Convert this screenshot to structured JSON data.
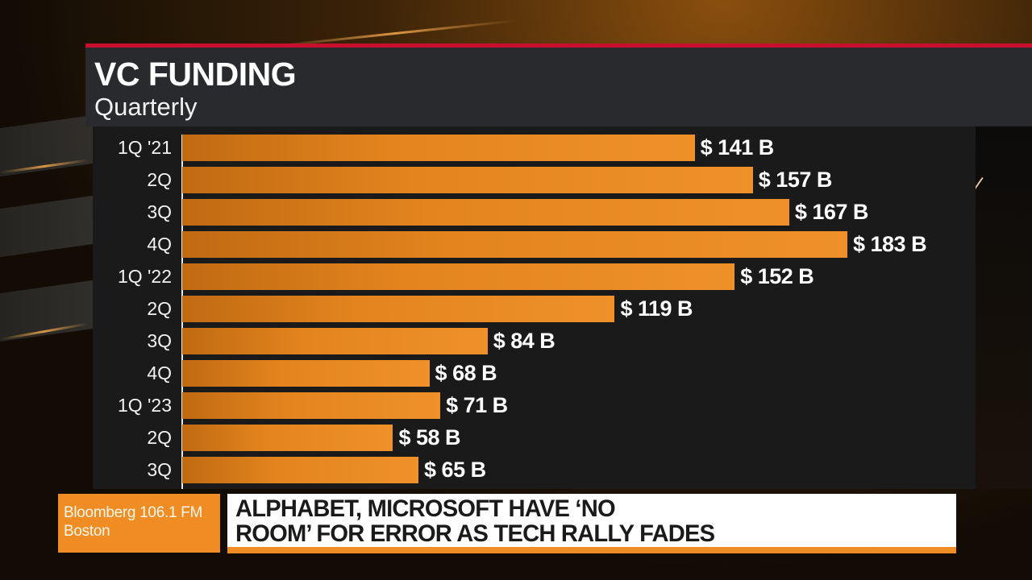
{
  "header": {
    "title": "VC FUNDING",
    "subtitle": "Quarterly"
  },
  "colors": {
    "bar": "#ef9128",
    "accent_red": "#c8102e",
    "panel": "#282a2d",
    "chart_bg": "#1a1a1b"
  },
  "chart_data": {
    "type": "bar",
    "orientation": "horizontal",
    "title": "VC FUNDING",
    "subtitle": "Quarterly",
    "xlabel": "",
    "ylabel": "",
    "unit": "$ B",
    "categories": [
      "1Q '21",
      "2Q",
      "3Q",
      "4Q",
      "1Q '22",
      "2Q",
      "3Q",
      "4Q",
      "1Q '23",
      "2Q",
      "3Q"
    ],
    "values": [
      141,
      157,
      167,
      183,
      152,
      119,
      84,
      68,
      71,
      58,
      65
    ],
    "value_labels": [
      "$ 141 B",
      "$ 157 B",
      "$ 167 B",
      "$ 183 B",
      "$ 152 B",
      "$ 119 B",
      "$ 84 B",
      "$ 68 B",
      "$ 71 B",
      "$ 58 B",
      "$ 65 B"
    ],
    "xlim": [
      0,
      183
    ],
    "grid": false,
    "legend": null
  },
  "footer": {
    "source_line1": "Bloomberg 106.1 FM",
    "source_line2": "Boston",
    "headline_line1": "ALPHABET, MICROSOFT HAVE ‘NO",
    "headline_line2": "ROOM’ FOR ERROR AS TECH RALLY FADES"
  }
}
